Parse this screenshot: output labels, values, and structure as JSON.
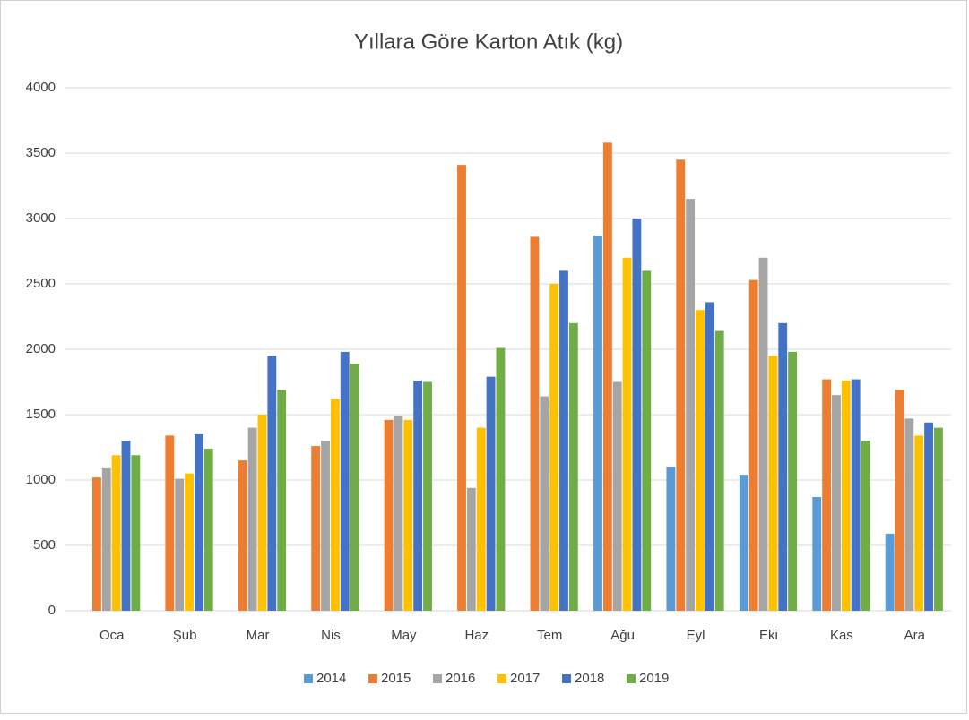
{
  "chart_data": {
    "type": "bar",
    "title": "Yıllara Göre Karton Atık (kg)",
    "categories": [
      "Oca",
      "Şub",
      "Mar",
      "Nis",
      "May",
      "Haz",
      "Tem",
      "Ağu",
      "Eyl",
      "Eki",
      "Kas",
      "Ara"
    ],
    "series": [
      {
        "name": "2014",
        "color": "#5b9bd5",
        "values": [
          null,
          null,
          null,
          null,
          null,
          null,
          null,
          2870,
          1100,
          1040,
          870,
          590
        ]
      },
      {
        "name": "2015",
        "color": "#ed7d31",
        "values": [
          1020,
          1340,
          1150,
          1260,
          1460,
          3410,
          2860,
          3580,
          3450,
          2530,
          1770,
          1690
        ]
      },
      {
        "name": "2016",
        "color": "#a5a5a5",
        "values": [
          1090,
          1010,
          1400,
          1300,
          1490,
          940,
          1640,
          1750,
          3150,
          2700,
          1650,
          1470
        ]
      },
      {
        "name": "2017",
        "color": "#ffc000",
        "values": [
          1190,
          1050,
          1500,
          1620,
          1460,
          1400,
          2500,
          2700,
          2300,
          1950,
          1760,
          1340
        ]
      },
      {
        "name": "2018",
        "color": "#4472c4",
        "values": [
          1300,
          1350,
          1950,
          1980,
          1760,
          1790,
          2600,
          3000,
          2360,
          2200,
          1770,
          1440
        ]
      },
      {
        "name": "2019",
        "color": "#70ad47",
        "values": [
          1190,
          1240,
          1690,
          1890,
          1750,
          2010,
          2200,
          2600,
          2140,
          1980,
          1300,
          1400
        ]
      }
    ],
    "ylim": [
      0,
      4000
    ],
    "yticks": [
      0,
      500,
      1000,
      1500,
      2000,
      2500,
      3000,
      3500,
      4000
    ],
    "grid": true,
    "legend": "bottom"
  }
}
